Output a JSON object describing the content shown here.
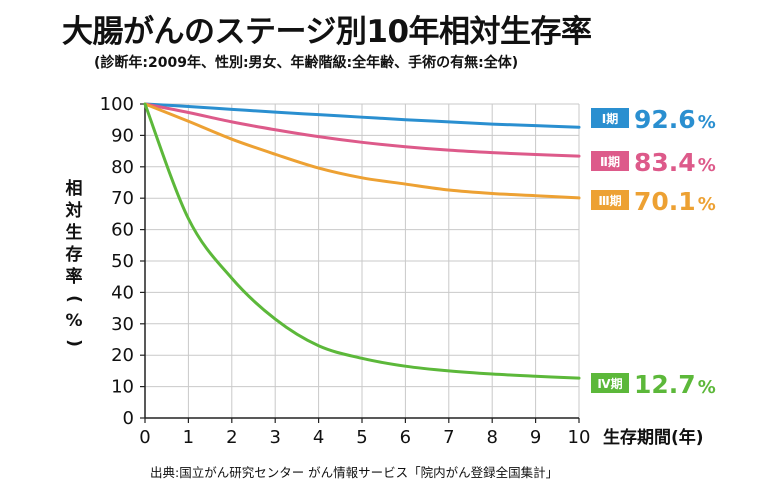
{
  "header": {
    "title": "大腸がんのステージ別10年相対生存率",
    "subtitle": "(診断年:2009年、性別:男女、年齢階級:全年齢、手術の有無:全体)"
  },
  "footer": {
    "source": "出典:国立がん研究センター がん情報サービス「院内がん登録全国集計」"
  },
  "chart_data": {
    "type": "line",
    "title": "大腸がんのステージ別10年相対生存率",
    "subtitle": "(診断年:2009年、性別:男女、年齢階級:全年齢、手術の有無:全体)",
    "xlabel": "生存期間(年)",
    "ylabel_chars": [
      "相",
      "対",
      "生",
      "存",
      "率",
      "(",
      "%",
      ")"
    ],
    "xlim": [
      0,
      10
    ],
    "ylim": [
      0,
      100
    ],
    "x_ticks": [
      0,
      1,
      2,
      3,
      4,
      5,
      6,
      7,
      8,
      9,
      10
    ],
    "y_ticks": [
      0,
      10,
      20,
      30,
      40,
      50,
      60,
      70,
      80,
      90,
      100
    ],
    "grid": true,
    "legend": "right-end labels",
    "x": [
      0,
      1,
      2,
      3,
      4,
      5,
      6,
      7,
      8,
      9,
      10
    ],
    "series": [
      {
        "badge": "Ⅰ期",
        "value_label": "92.6",
        "unit": "%",
        "color": "#2a8fd0",
        "values": [
          100,
          99.2,
          98.3,
          97.4,
          96.6,
          95.8,
          95.0,
          94.3,
          93.6,
          93.1,
          92.6
        ]
      },
      {
        "badge": "Ⅱ期",
        "value_label": "83.4",
        "unit": "%",
        "color": "#dd5a8a",
        "values": [
          100,
          97.3,
          94.3,
          91.8,
          89.6,
          87.8,
          86.4,
          85.3,
          84.5,
          83.9,
          83.4
        ]
      },
      {
        "badge": "Ⅲ期",
        "value_label": "70.1",
        "unit": "%",
        "color": "#eda133",
        "values": [
          100,
          94.5,
          88.8,
          84.0,
          79.6,
          76.5,
          74.5,
          72.6,
          71.5,
          70.8,
          70.1
        ]
      },
      {
        "badge": "Ⅳ期",
        "value_label": "12.7",
        "unit": "%",
        "color": "#5cb83a",
        "values": [
          100,
          63.5,
          44.5,
          31.5,
          23.0,
          19.0,
          16.5,
          15.0,
          14.0,
          13.3,
          12.7
        ]
      }
    ]
  }
}
